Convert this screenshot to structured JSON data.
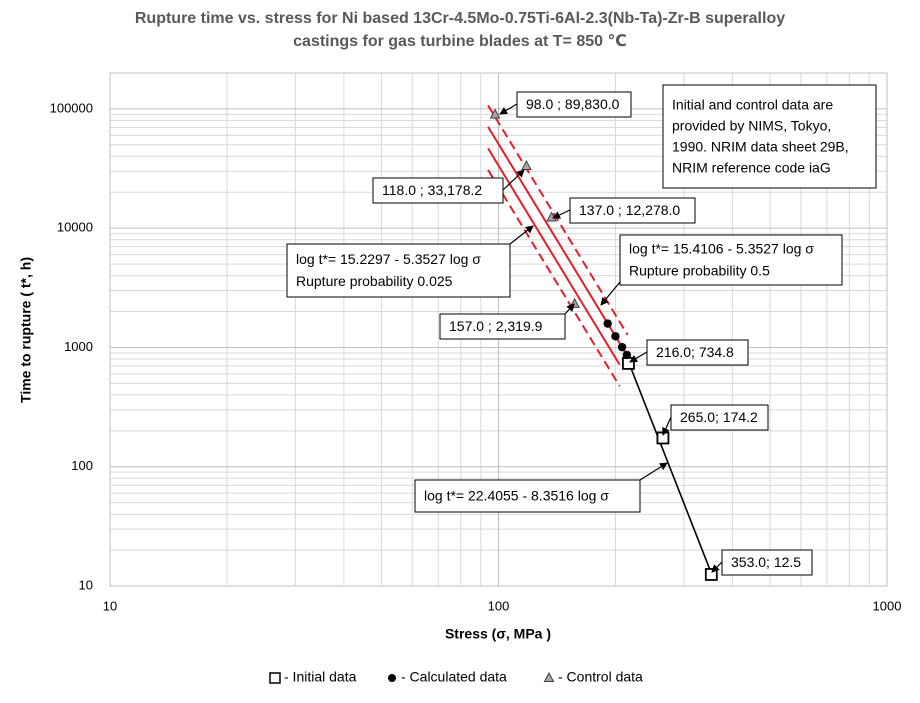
{
  "chart_data": {
    "type": "scatter",
    "title": [
      "Rupture time vs. stress for Ni based 13Cr-4.5Mo-0.75Ti-6Al-2.3(Nb-Ta)-Zr-B superalloy",
      "castings for gas turbine blades at T= 850 ℃"
    ],
    "x_label": "Stress (σ, MPa )",
    "y_label": "Time to rupture ( t*, h)",
    "xlog": true,
    "ylog": true,
    "grid": true,
    "minor_grid": true,
    "xlim": [
      10,
      1000
    ],
    "xticks": [
      10,
      100,
      1000
    ],
    "ylim": [
      10,
      200000
    ],
    "yticks": [
      10,
      100,
      1000,
      10000,
      100000
    ],
    "legend": "bottom",
    "series": [
      {
        "name": "- Initial data",
        "marker": "square",
        "color": "#000000",
        "x": [
          216,
          265,
          353
        ],
        "values": [
          734.8,
          174.2,
          12.5
        ]
      },
      {
        "name": "- Calculated data",
        "marker": "circle",
        "color": "#000000",
        "x": [
          191,
          200,
          208,
          214
        ],
        "values": [
          1585,
          1241,
          1006,
          865
        ]
      },
      {
        "name": "- Control data",
        "marker": "triangle",
        "color": "#a6a6a6",
        "x": [
          98,
          118,
          137,
          157
        ],
        "values": [
          89830,
          33178.2,
          12278,
          2319.9
        ]
      },
      {
        "line": "dashed",
        "color": "#e0202a",
        "x": [
          94,
          215
        ],
        "values": [
          106900,
          1274
        ]
      },
      {
        "line": "solid",
        "color": "#e0202a",
        "x": [
          94,
          215
        ],
        "values": [
          70790,
          843
        ]
      },
      {
        "line": "solid",
        "color": "#e0202a",
        "x": [
          94,
          205
        ],
        "values": [
          46640,
          718
        ]
      },
      {
        "line": "dashed",
        "color": "#e0202a",
        "x": [
          94,
          205
        ],
        "values": [
          30830,
          474
        ]
      },
      {
        "line": "solid",
        "color": "#000000",
        "x": [
          216,
          353
        ],
        "values": [
          760,
          12.8
        ]
      }
    ],
    "annotations": [
      {
        "lines": [
          "98.0 ;  89,830.0"
        ]
      },
      {
        "lines": [
          "118.0 ;  33,178.2"
        ]
      },
      {
        "lines": [
          "137.0 ;  12,278.0"
        ]
      },
      {
        "lines": [
          "157.0 ;  2,319.9"
        ]
      },
      {
        "lines": [
          "216.0; 734.8"
        ]
      },
      {
        "lines": [
          "265.0; 174.2"
        ]
      },
      {
        "lines": [
          "353.0; 12.5"
        ]
      },
      {
        "lines": [
          "log t*= 15.2297 - 5.3527 log σ",
          "Rupture probability 0.025"
        ]
      },
      {
        "lines": [
          "log t*= 15.4106 - 5.3527 log σ",
          "Rupture probability 0.5"
        ]
      },
      {
        "lines": [
          "log t*= 22.4055 - 8.3516 log σ"
        ]
      },
      {
        "lines": [
          "Initial and control data are",
          "provided by NIMS, Tokyo,",
          "1990. NRIM data sheet 29B,",
          "NRIM reference code iaG"
        ]
      }
    ]
  }
}
